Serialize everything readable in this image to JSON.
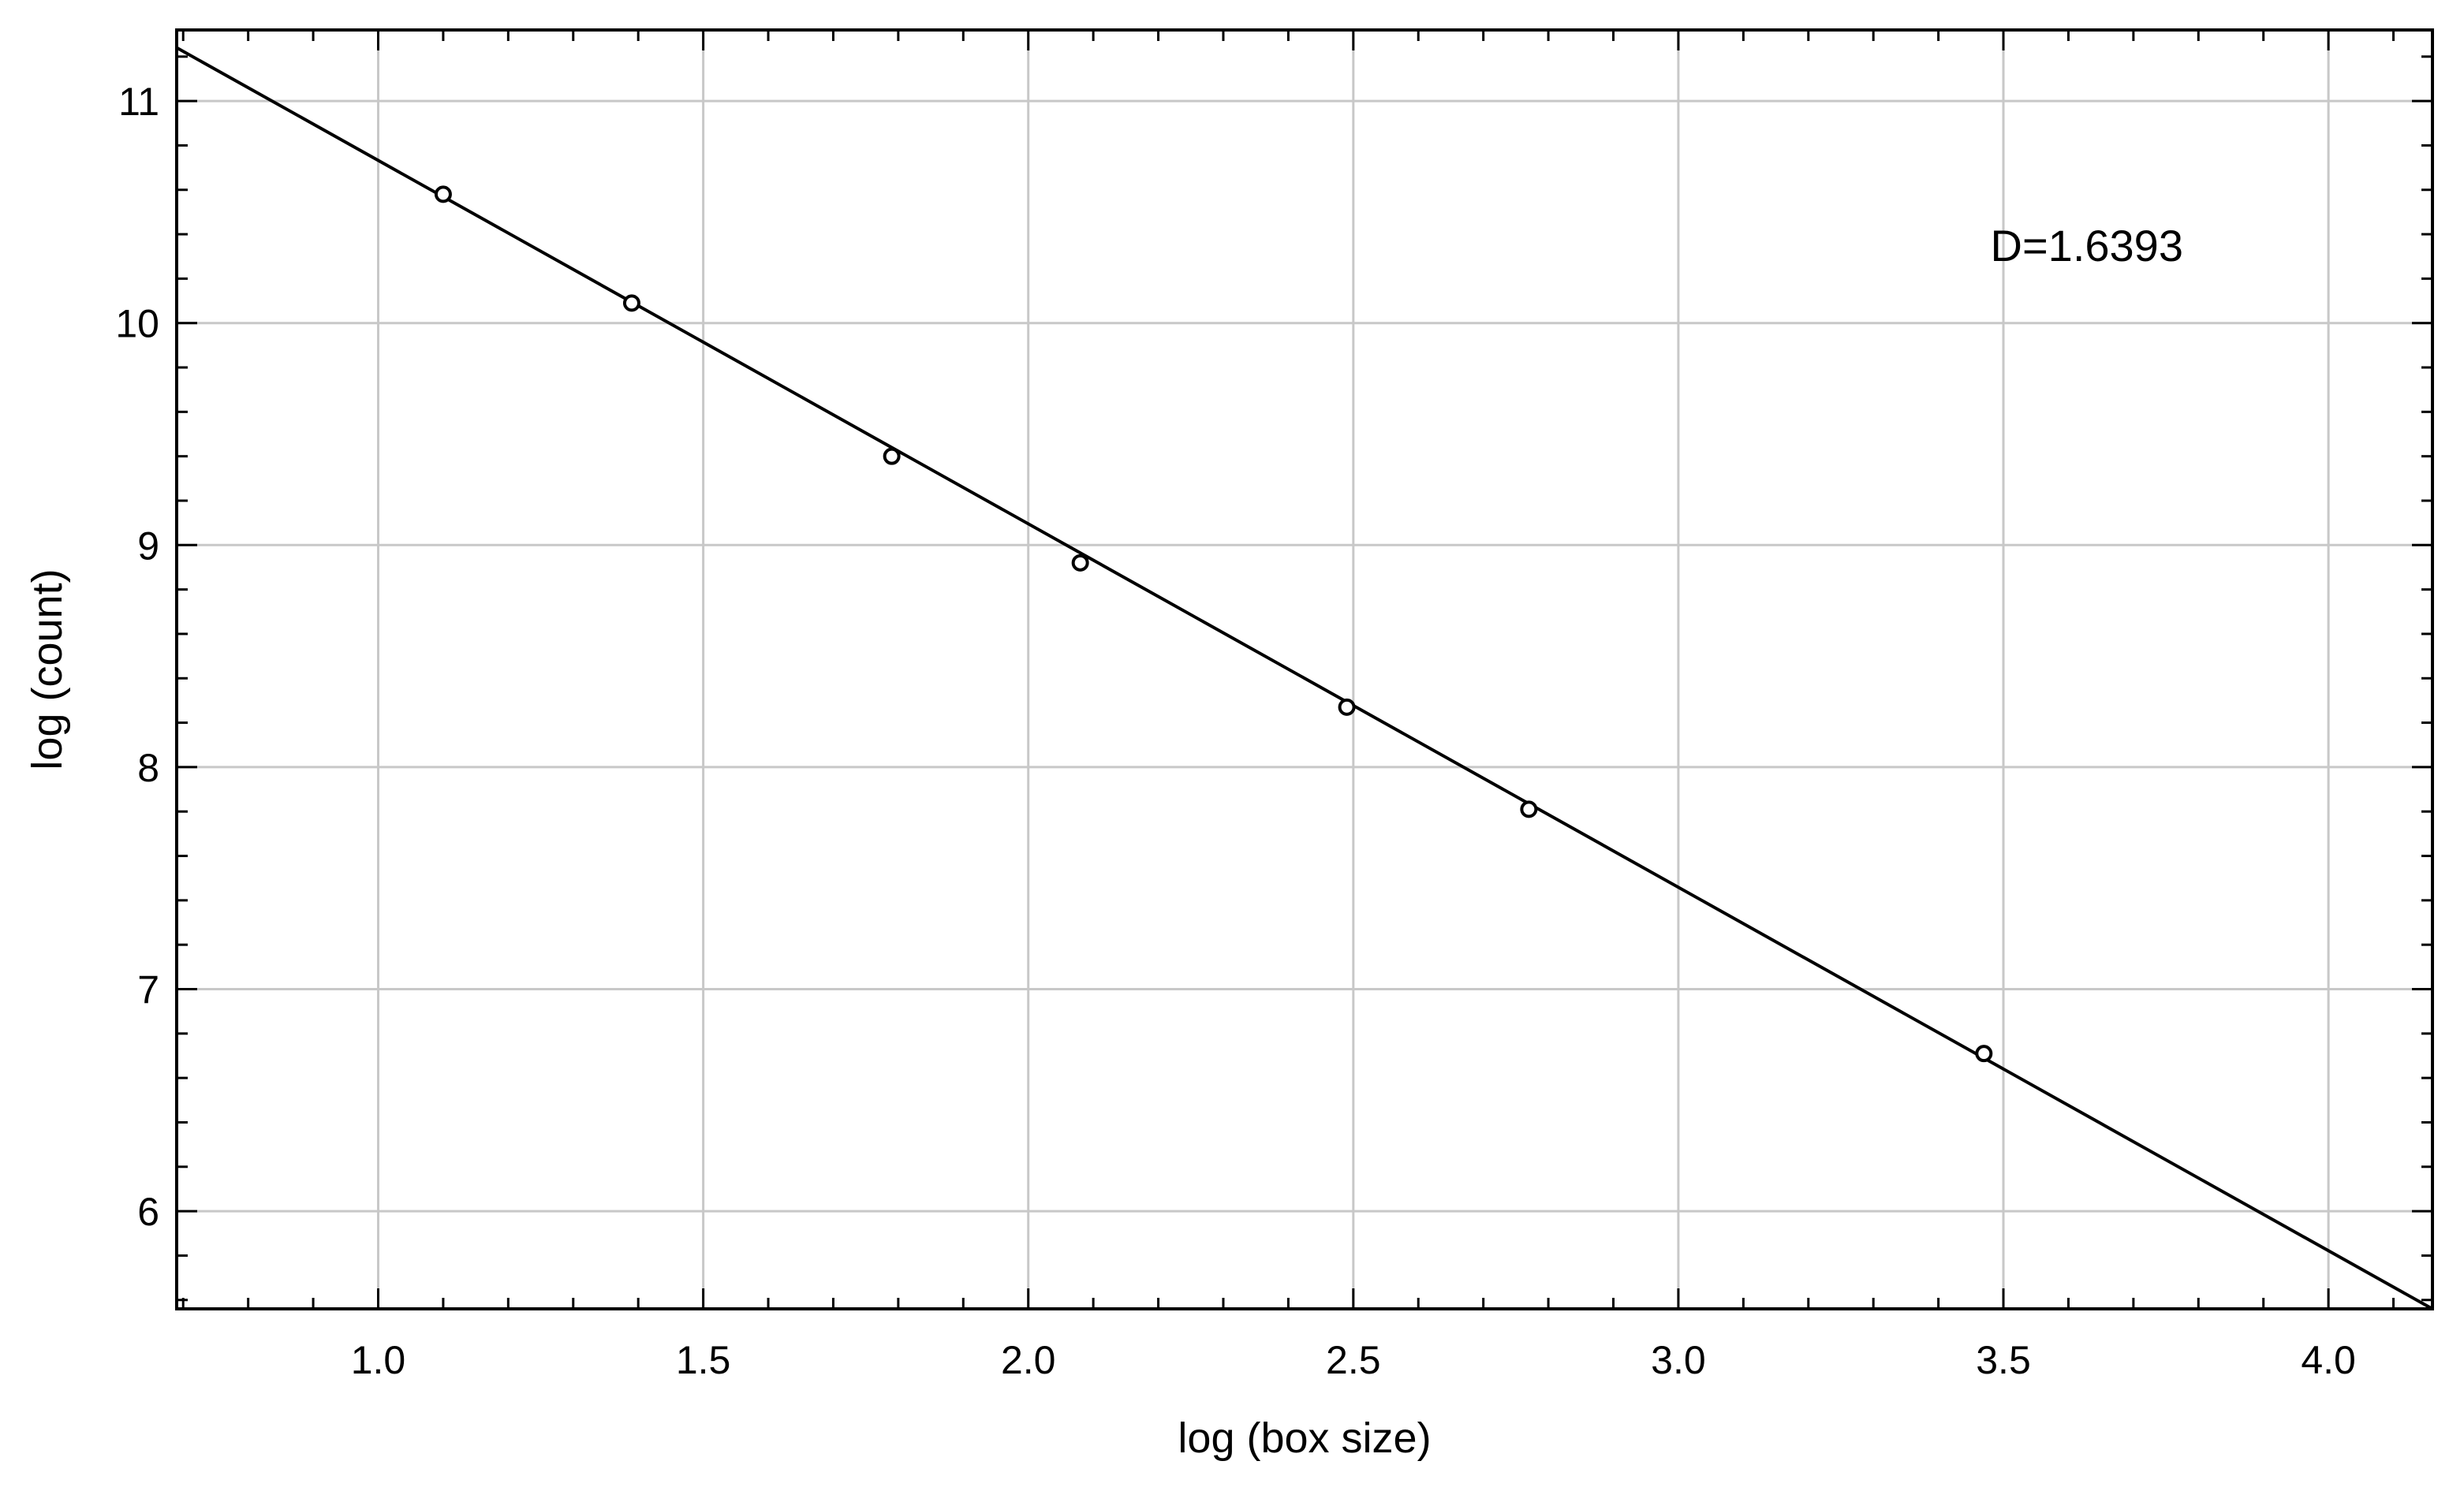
{
  "chart_data": {
    "type": "scatter",
    "xlabel": "log (box size)",
    "ylabel": "log (count)",
    "xlim": [
      0.69,
      4.16
    ],
    "ylim": [
      5.56,
      11.32
    ],
    "xticks": [
      1.0,
      1.5,
      2.0,
      2.5,
      3.0,
      3.5,
      4.0
    ],
    "xtick_labels": [
      "1.0",
      "1.5",
      "2.0",
      "2.5",
      "3.0",
      "3.5",
      "4.0"
    ],
    "yticks": [
      6,
      7,
      8,
      9,
      10,
      11
    ],
    "ytick_labels": [
      "6",
      "7",
      "8",
      "9",
      "10",
      "11"
    ],
    "grid": true,
    "series": [
      {
        "marker": "open-circle",
        "x": [
          1.1,
          1.39,
          1.79,
          2.08,
          2.49,
          2.77,
          3.47
        ],
        "y": [
          10.58,
          10.09,
          9.4,
          8.92,
          8.27,
          7.81,
          6.71
        ]
      }
    ],
    "fit_line": {
      "x": [
        0.69,
        4.16
      ],
      "y": [
        11.24,
        5.56
      ]
    },
    "annotations": [
      {
        "text": "D=1.6393",
        "x": 3.48,
        "y": 10.28
      }
    ],
    "colors": {
      "line": "#000000",
      "grid": "#c8c8c8",
      "markers": "#000000",
      "background": "#ffffff"
    }
  }
}
